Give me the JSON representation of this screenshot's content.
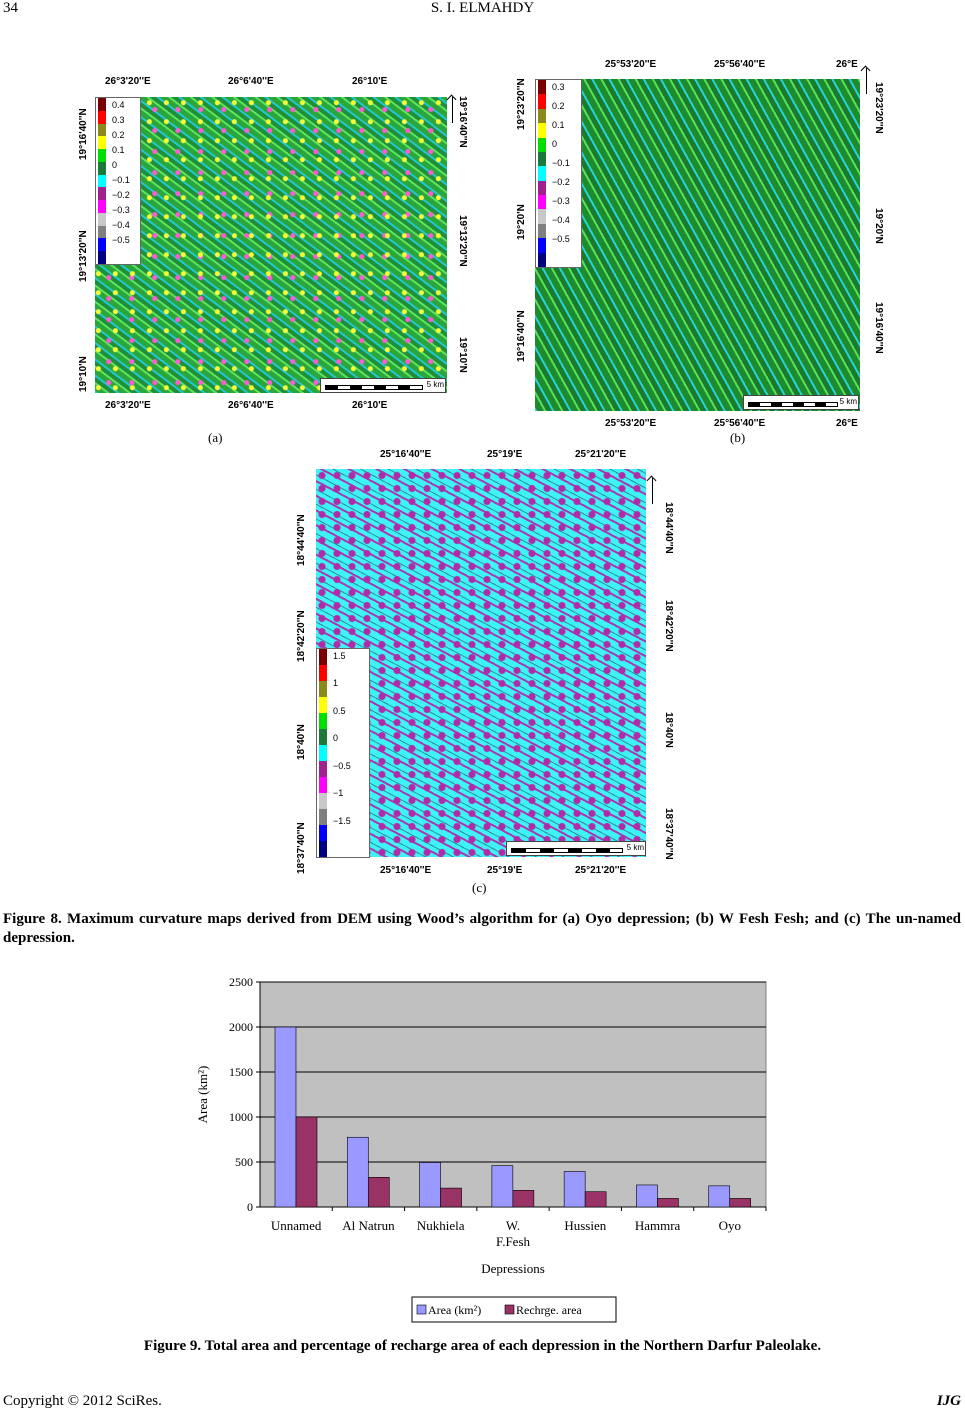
{
  "header": {
    "page_number": "34",
    "author": "S. I. ELMAHDY"
  },
  "map_a": {
    "label": "(a)",
    "top_lon": [
      "26°3'20''E",
      "26°6'40''E",
      "26°10'E"
    ],
    "bottom_lon": [
      "26°3'20''E",
      "26°6'40''E",
      "26°10'E"
    ],
    "left_lat": [
      "19°16'40''N",
      "19°13'20''N",
      "19°10'N"
    ],
    "right_lat": [
      "19°16'40''N",
      "19°13'20''N",
      "19°10'N"
    ],
    "legend": [
      "0.4",
      "0.3",
      "0.2",
      "0.1",
      "0",
      "−0.1",
      "−0.2",
      "−0.3",
      "−0.4",
      "−0.5"
    ],
    "legend_colors": [
      "#7a0000",
      "#ff0000",
      "#8a8a1c",
      "#ffff00",
      "#00dd00",
      "#1a7a3a",
      "#00ffff",
      "#a0208e",
      "#ff00ff",
      "#c8c8c8",
      "#808080",
      "#0000ff",
      "#000080"
    ],
    "scale": "5 km"
  },
  "map_b": {
    "label": "(b)",
    "top_lon": [
      "25°53'20''E",
      "25°56'40''E",
      "26°E"
    ],
    "bottom_lon": [
      "25°53'20''E",
      "25°56'40''E",
      "26°E"
    ],
    "left_lat": [
      "19°23'20''N",
      "19°20'N",
      "19°16'40''N"
    ],
    "right_lat": [
      "19°23'20''N",
      "19°20'N",
      "19°16'40''N"
    ],
    "legend": [
      "0.3",
      "0.2",
      "0.1",
      "0",
      "−0.1",
      "−0.2",
      "−0.3",
      "−0.4",
      "−0.5"
    ],
    "legend_colors": [
      "#7a0000",
      "#ff0000",
      "#8a8a1c",
      "#ffff00",
      "#00dd00",
      "#1a7a3a",
      "#00ffff",
      "#a0208e",
      "#ff00ff",
      "#c8c8c8",
      "#808080",
      "#0000ff",
      "#000080"
    ],
    "scale": "5 km"
  },
  "map_c": {
    "label": "(c)",
    "top_lon": [
      "25°16'40''E",
      "25°19'E",
      "25°21'20''E"
    ],
    "bottom_lon": [
      "25°16'40''E",
      "25°19'E",
      "25°21'20''E"
    ],
    "left_lat": [
      "18°44'40''N",
      "18°42'20''N",
      "18°40'N",
      "18°37'40''N"
    ],
    "right_lat": [
      "18°44'40''N",
      "18°42'20''N",
      "18°40'N",
      "18°37'40''N"
    ],
    "legend": [
      "1.5",
      "1",
      "0.5",
      "0",
      "−0.5",
      "−1",
      "−1.5"
    ],
    "legend_colors": [
      "#7a0000",
      "#ff0000",
      "#8a8a1c",
      "#ffff00",
      "#00dd00",
      "#1a7a3a",
      "#00ffff",
      "#a0208e",
      "#ff00ff",
      "#c8c8c8",
      "#808080",
      "#0000ff",
      "#000080"
    ],
    "scale": "5 km"
  },
  "figure8_caption": "Figure 8. Maximum curvature maps derived from DEM using Wood’s algorithm for (a) Oyo depression; (b) W Fesh Fesh; and (c) The un-named depression.",
  "chart_data": {
    "type": "bar",
    "categories": [
      "Unnamed",
      "Al Natrun",
      "Nukhiela",
      "W. F.Fesh",
      "Hussien",
      "Hammra",
      "Oyo"
    ],
    "category_lines": [
      [
        "Unnamed"
      ],
      [
        "Al Natrun"
      ],
      [
        "Nukhiela"
      ],
      [
        "W.",
        "F.Fesh"
      ],
      [
        "Hussien"
      ],
      [
        "Hammra"
      ],
      [
        "Oyo"
      ]
    ],
    "series": [
      {
        "name": "Area (km²)",
        "values": [
          2000,
          775,
          495,
          460,
          395,
          245,
          235
        ],
        "color": "#9999ff"
      },
      {
        "name": "Rechrge. area",
        "values": [
          1000,
          330,
          210,
          185,
          170,
          95,
          95
        ],
        "color": "#993366"
      }
    ],
    "xlabel": "Depressions",
    "ylabel": "Area (km²)",
    "yticks": [
      "0",
      "500",
      "1000",
      "1500",
      "2000",
      "2500"
    ],
    "ylim": [
      0,
      2500
    ],
    "grid": true,
    "plot_background": "#c0c0c0",
    "legend_position": "bottom"
  },
  "figure9_caption": "Figure 9. Total area and percentage of recharge area of each depression in the Northern Darfur Paleolake.",
  "footer": {
    "copyright": "Copyright © 2012 SciRes.",
    "journal": "IJG"
  }
}
